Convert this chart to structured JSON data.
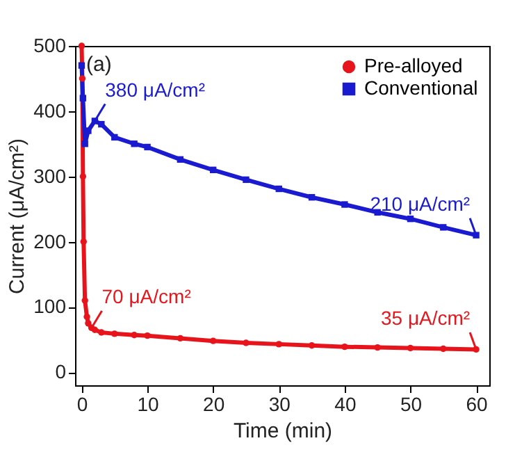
{
  "chart_data": {
    "type": "line",
    "xlabel": "Time (min)",
    "ylabel": "Current (μA/cm²)",
    "xlim": [
      -1,
      62
    ],
    "ylim": [
      -20,
      500
    ],
    "xticks": [
      0,
      10,
      20,
      30,
      40,
      50,
      60
    ],
    "yticks": [
      0,
      100,
      200,
      300,
      400,
      500
    ],
    "grid": false,
    "legend": "top right",
    "series": [
      {
        "name": "Pre-alloyed",
        "color": "#e8141c",
        "marker": "circle",
        "x": [
          0,
          0.1,
          0.2,
          0.3,
          0.5,
          0.8,
          1,
          1.5,
          2,
          3,
          5,
          8,
          10,
          15,
          20,
          25,
          30,
          35,
          40,
          45,
          50,
          55,
          60
        ],
        "values": [
          500,
          450,
          300,
          200,
          110,
          85,
          75,
          68,
          65,
          61,
          59,
          57,
          56,
          52,
          48,
          45,
          43,
          41,
          39,
          38,
          37,
          36,
          35
        ]
      },
      {
        "name": "Conventional",
        "color": "#1a1ad0",
        "marker": "square",
        "x": [
          0,
          0.2,
          0.5,
          1,
          2,
          3,
          5,
          8,
          10,
          15,
          20,
          25,
          30,
          35,
          40,
          45,
          50,
          55,
          60
        ],
        "values": [
          470,
          420,
          350,
          370,
          385,
          380,
          360,
          350,
          345,
          326,
          310,
          295,
          281,
          268,
          257,
          245,
          235,
          222,
          210
        ]
      }
    ],
    "annotations": [
      "(a)",
      {
        "text": "380 μA/cm²",
        "x": 2,
        "y": 385
      },
      {
        "text": "210 μA/cm²",
        "x": 60,
        "y": 210
      },
      {
        "text": "70 μA/cm²",
        "x": 1.5,
        "y": 68
      },
      {
        "text": "35 μA/cm²",
        "x": 60,
        "y": 35
      }
    ]
  }
}
